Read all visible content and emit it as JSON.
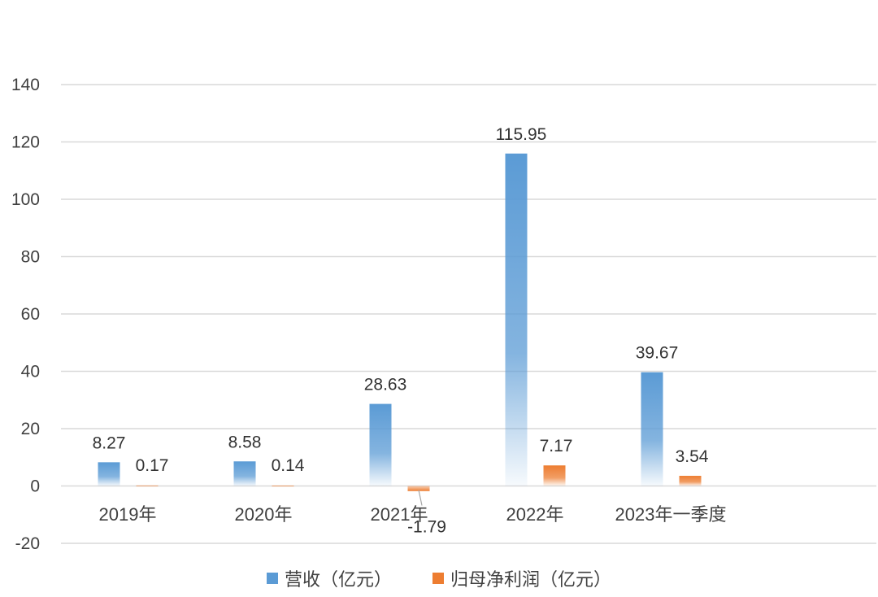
{
  "chart_data": {
    "type": "bar",
    "categories": [
      "2019年",
      "2020年",
      "2021年",
      "2022年",
      "2023年一季度"
    ],
    "series": [
      {
        "name": "营收（亿元）",
        "values": [
          8.27,
          8.58,
          28.63,
          115.95,
          39.67
        ],
        "labels": [
          "8.27",
          "8.58",
          "28.63",
          "115.95",
          "39.67"
        ],
        "color": "#5b9bd5"
      },
      {
        "name": "归母净利润（亿元）",
        "values": [
          0.17,
          0.14,
          -1.79,
          7.17,
          3.54
        ],
        "labels": [
          "0.17",
          "0.14",
          "-1.79",
          "7.17",
          "3.54"
        ],
        "color": "#ed7d31"
      }
    ],
    "yticks": [
      "-20",
      "0",
      "20",
      "40",
      "60",
      "80",
      "100",
      "120",
      "140"
    ],
    "ylim": [
      -20,
      140
    ],
    "grid": true,
    "legend": "bottom"
  }
}
